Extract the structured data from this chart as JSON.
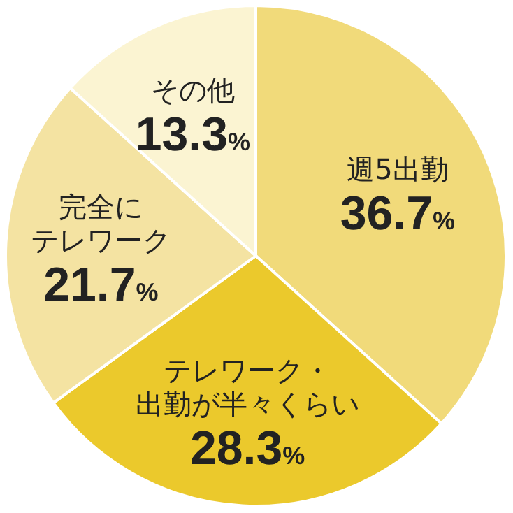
{
  "chart_data": {
    "type": "pie",
    "categories": [
      "週5出勤",
      "テレワーク・出勤が半々くらい",
      "完全にテレワーク",
      "その他"
    ],
    "values": [
      36.7,
      28.3,
      21.7,
      13.3
    ],
    "value_labels": [
      "36.7%",
      "28.3%",
      "21.7%",
      "13.3%"
    ],
    "colors": [
      "#f1da7a",
      "#ebc92c",
      "#f4e3a2",
      "#fbf4d2"
    ],
    "legend": false
  }
}
